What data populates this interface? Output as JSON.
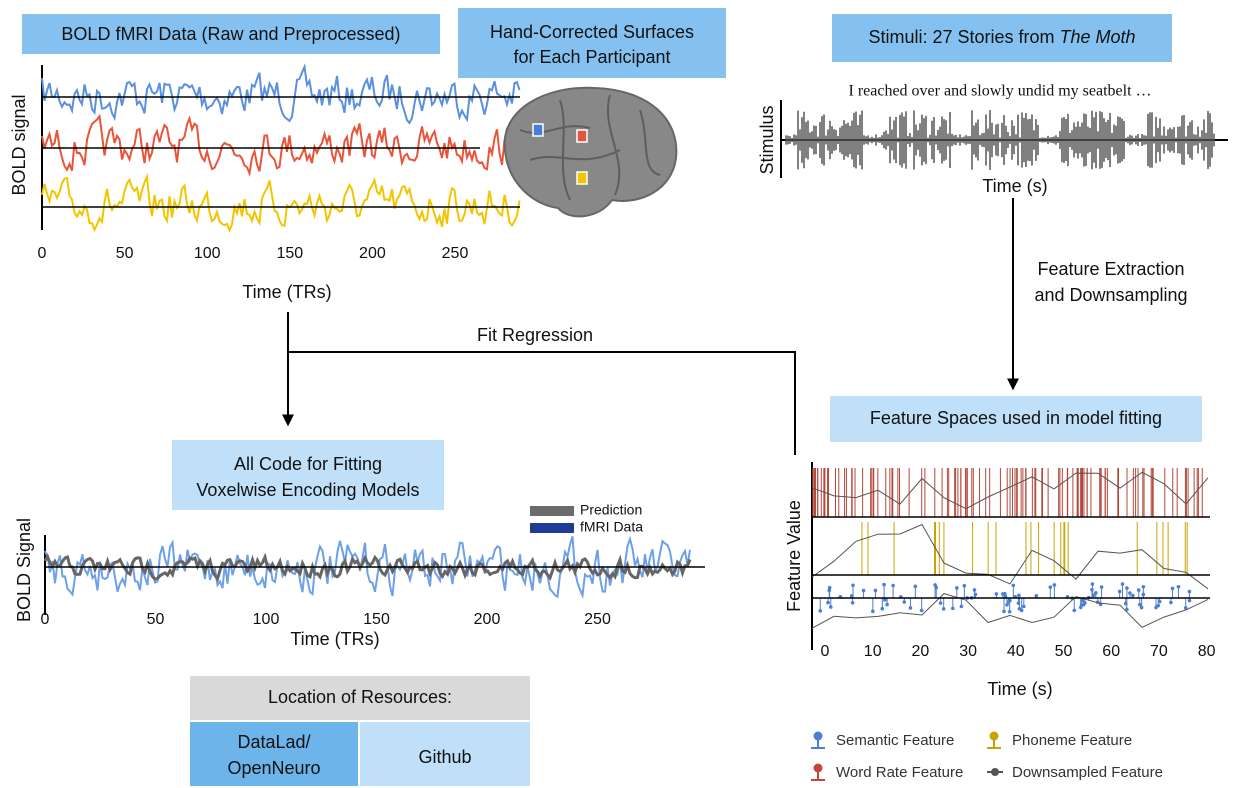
{
  "bold": {
    "title": "BOLD fMRI Data (Raw and Preprocessed)",
    "y_label": "BOLD signal",
    "x_label": "Time (TRs)",
    "x_ticks": [
      0,
      50,
      100,
      150,
      200,
      250
    ]
  },
  "surfaces": {
    "title_lines": [
      "Hand-Corrected Surfaces",
      "for Each Participant"
    ]
  },
  "stimuli": {
    "title": "Stimuli: 27 Stories from",
    "title_emphasis": "The Moth",
    "transcript": "I reached over and slowly undid my seatbelt …",
    "y_label": "Stimulus",
    "x_label": "Time (s)"
  },
  "arrows": {
    "extraction_lines": [
      "Feature Extraction",
      "and Downsampling"
    ],
    "fit": "Fit Regression"
  },
  "features": {
    "title": "Feature Spaces used in model fitting",
    "y_label": "Feature Value",
    "x_label": "Time (s)",
    "x_ticks": [
      0,
      10,
      20,
      30,
      40,
      50,
      60,
      70,
      80
    ],
    "legend": [
      "Semantic Feature",
      "Phoneme Feature",
      "Word Rate Feature",
      "Downsampled Feature"
    ]
  },
  "code": {
    "title_lines": [
      "All Code for Fitting",
      "Voxelwise Encoding Models"
    ],
    "y_label": "BOLD Signal",
    "x_label": "Time (TRs)",
    "x_ticks": [
      0,
      50,
      100,
      150,
      200,
      250
    ],
    "legend": [
      "Prediction",
      "fMRI Data"
    ]
  },
  "resources": {
    "header": "Location of Resources:",
    "datalad_lines": [
      "DataLad/",
      "OpenNeuro"
    ],
    "github": "Github"
  }
}
